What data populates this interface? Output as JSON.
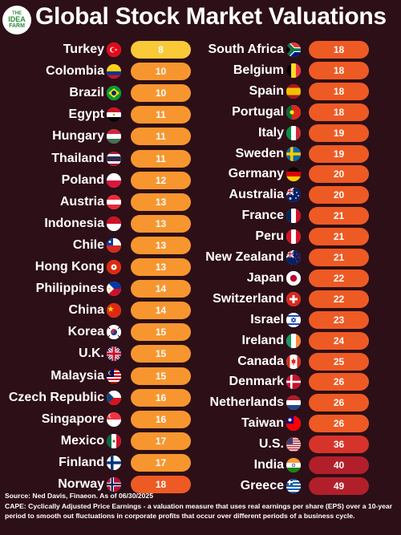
{
  "logo": {
    "line1": "THE",
    "line2": "IDEA",
    "line3": "FARM"
  },
  "title": "Global Stock Market Valuations",
  "colors": {
    "background": "#2d0f17",
    "low": "#f9c937",
    "mid": "#f7962f",
    "high": "#ee5a24",
    "top": "#d6342a",
    "extreme": "#b11f2a"
  },
  "chart_data": {
    "type": "table",
    "metric": "CAPE",
    "columns": [
      {
        "rows": [
          {
            "country": "Turkey",
            "flag": "turkey-flag-icon",
            "value": 8
          },
          {
            "country": "Colombia",
            "flag": "colombia-flag-icon",
            "value": 10
          },
          {
            "country": "Brazil",
            "flag": "brazil-flag-icon",
            "value": 10
          },
          {
            "country": "Egypt",
            "flag": "egypt-flag-icon",
            "value": 11
          },
          {
            "country": "Hungary",
            "flag": "hungary-flag-icon",
            "value": 11
          },
          {
            "country": "Thailand",
            "flag": "thailand-flag-icon",
            "value": 11
          },
          {
            "country": "Poland",
            "flag": "poland-flag-icon",
            "value": 12
          },
          {
            "country": "Austria",
            "flag": "austria-flag-icon",
            "value": 13
          },
          {
            "country": "Indonesia",
            "flag": "indonesia-flag-icon",
            "value": 13
          },
          {
            "country": "Chile",
            "flag": "chile-flag-icon",
            "value": 13
          },
          {
            "country": "Hong Kong",
            "flag": "hong-kong-flag-icon",
            "value": 13
          },
          {
            "country": "Philippines",
            "flag": "philippines-flag-icon",
            "value": 14
          },
          {
            "country": "China",
            "flag": "china-flag-icon",
            "value": 14
          },
          {
            "country": "Korea",
            "flag": "korea-flag-icon",
            "value": 15
          },
          {
            "country": "U.K.",
            "flag": "uk-flag-icon",
            "value": 15
          },
          {
            "country": "Malaysia",
            "flag": "malaysia-flag-icon",
            "value": 15
          },
          {
            "country": "Czech Republic",
            "flag": "czech-republic-flag-icon",
            "value": 16
          },
          {
            "country": "Singapore",
            "flag": "singapore-flag-icon",
            "value": 16
          },
          {
            "country": "Mexico",
            "flag": "mexico-flag-icon",
            "value": 17
          },
          {
            "country": "Finland",
            "flag": "finland-flag-icon",
            "value": 17
          },
          {
            "country": "Norway",
            "flag": "norway-flag-icon",
            "value": 18
          }
        ]
      },
      {
        "rows": [
          {
            "country": "South Africa",
            "flag": "south-africa-flag-icon",
            "value": 18
          },
          {
            "country": "Belgium",
            "flag": "belgium-flag-icon",
            "value": 18
          },
          {
            "country": "Spain",
            "flag": "spain-flag-icon",
            "value": 18
          },
          {
            "country": "Portugal",
            "flag": "portugal-flag-icon",
            "value": 18
          },
          {
            "country": "Italy",
            "flag": "italy-flag-icon",
            "value": 19
          },
          {
            "country": "Sweden",
            "flag": "sweden-flag-icon",
            "value": 19
          },
          {
            "country": "Germany",
            "flag": "germany-flag-icon",
            "value": 20
          },
          {
            "country": "Australia",
            "flag": "australia-flag-icon",
            "value": 20
          },
          {
            "country": "France",
            "flag": "france-flag-icon",
            "value": 21
          },
          {
            "country": "Peru",
            "flag": "peru-flag-icon",
            "value": 21
          },
          {
            "country": "New Zealand",
            "flag": "new-zealand-flag-icon",
            "value": 21
          },
          {
            "country": "Japan",
            "flag": "japan-flag-icon",
            "value": 22
          },
          {
            "country": "Switzerland",
            "flag": "switzerland-flag-icon",
            "value": 22
          },
          {
            "country": "Israel",
            "flag": "israel-flag-icon",
            "value": 23
          },
          {
            "country": "Ireland",
            "flag": "ireland-flag-icon",
            "value": 24
          },
          {
            "country": "Canada",
            "flag": "canada-flag-icon",
            "value": 25
          },
          {
            "country": "Denmark",
            "flag": "denmark-flag-icon",
            "value": 26
          },
          {
            "country": "Netherlands",
            "flag": "netherlands-flag-icon",
            "value": 26
          },
          {
            "country": "Taiwan",
            "flag": "taiwan-flag-icon",
            "value": 26
          },
          {
            "country": "U.S.",
            "flag": "us-flag-icon",
            "value": 36
          },
          {
            "country": "India",
            "flag": "india-flag-icon",
            "value": 40
          },
          {
            "country": "Greece",
            "flag": "greece-flag-icon",
            "value": 49
          }
        ]
      }
    ]
  },
  "footer": {
    "source": "Source: Ned Davis, Finaeon. As of 06/30/2025",
    "note": "CAPE: Cyclically Adjusted Price Earnings - a valuation measure that uses real earnings per share (EPS) over a 10-year period to smooth out fluctuations in corporate profits that occur over different periods of a business cycle."
  }
}
